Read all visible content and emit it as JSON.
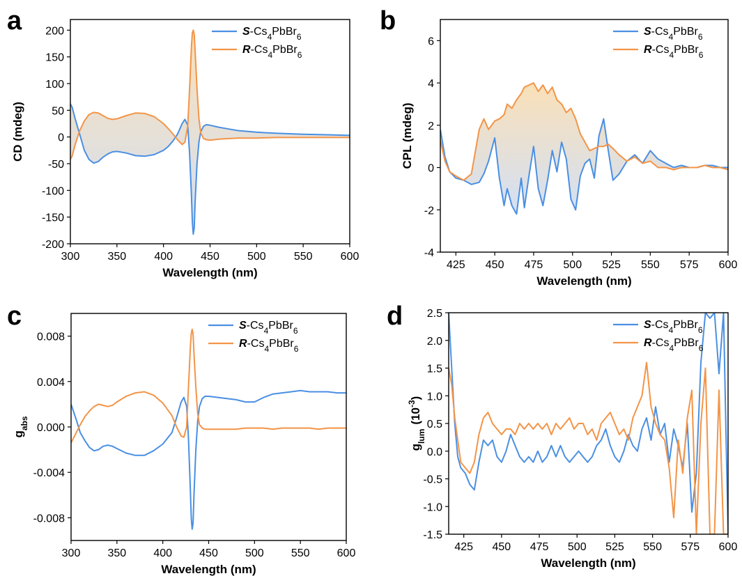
{
  "colors": {
    "s_series": "#4a8fe3",
    "r_series": "#f39447",
    "fill_r": "#f7cf8f",
    "fill_s": "#b9cff0"
  },
  "chart_data": [
    {
      "panel": "a",
      "type": "line",
      "xlabel": "Wavelength (nm)",
      "ylabel": "CD (mdeg)",
      "xlim": [
        300,
        600
      ],
      "ylim": [
        -200,
        220
      ],
      "xticks": [
        300,
        350,
        400,
        450,
        500,
        550,
        600
      ],
      "yticks": [
        -200,
        -150,
        -100,
        -50,
        0,
        50,
        100,
        150,
        200
      ],
      "fill_between": true,
      "legend": "top-right",
      "series": [
        {
          "name_prefix": "S",
          "name_formula": "-Cs4PbBr6",
          "color": "#4a8fe3",
          "x": [
            300,
            302,
            305,
            310,
            315,
            320,
            325,
            330,
            335,
            340,
            345,
            350,
            360,
            370,
            380,
            390,
            400,
            405,
            410,
            415,
            420,
            423,
            426,
            428,
            430,
            431,
            432,
            433,
            434,
            436,
            438,
            440,
            443,
            446,
            450,
            460,
            470,
            480,
            500,
            520,
            550,
            580,
            600
          ],
          "y": [
            62,
            55,
            35,
            5,
            -25,
            -42,
            -49,
            -46,
            -38,
            -32,
            -28,
            -27,
            -30,
            -35,
            -36,
            -33,
            -25,
            -18,
            -8,
            5,
            25,
            33,
            22,
            -30,
            -110,
            -160,
            -182,
            -170,
            -120,
            -50,
            -10,
            10,
            20,
            23,
            22,
            18,
            15,
            12,
            9,
            7,
            5,
            4,
            3
          ]
        },
        {
          "name_prefix": "R",
          "name_formula": "-Cs4PbBr6",
          "color": "#f39447",
          "x": [
            300,
            302,
            305,
            310,
            315,
            320,
            325,
            330,
            335,
            340,
            345,
            350,
            360,
            370,
            380,
            390,
            400,
            405,
            410,
            415,
            420,
            423,
            426,
            428,
            430,
            431,
            432,
            433,
            434,
            436,
            438,
            440,
            443,
            446,
            450,
            460,
            470,
            480,
            500,
            520,
            550,
            580,
            600
          ],
          "y": [
            -42,
            -35,
            -15,
            12,
            30,
            42,
            46,
            45,
            40,
            35,
            33,
            34,
            40,
            45,
            44,
            38,
            25,
            16,
            6,
            -5,
            -14,
            -10,
            20,
            90,
            170,
            195,
            200,
            192,
            160,
            90,
            35,
            8,
            -3,
            -5,
            -6,
            -4,
            -3,
            -2,
            -2,
            -1,
            -1,
            -1,
            -1
          ]
        }
      ]
    },
    {
      "panel": "b",
      "type": "line",
      "xlabel": "Wavelength (nm)",
      "ylabel": "CPL (mdeg)",
      "xlim": [
        415,
        600
      ],
      "ylim": [
        -4,
        7
      ],
      "xticks": [
        425,
        450,
        475,
        500,
        525,
        550,
        575,
        600
      ],
      "yticks": [
        -4,
        -2,
        0,
        2,
        4,
        6
      ],
      "fill_between": true,
      "legend": "top-right",
      "series": [
        {
          "name_prefix": "S",
          "name_formula": "-Cs4PbBr6",
          "color": "#4a8fe3",
          "x": [
            415,
            418,
            421,
            425,
            430,
            435,
            440,
            443,
            446,
            450,
            453,
            456,
            458,
            461,
            464,
            467,
            469,
            472,
            475,
            478,
            481,
            484,
            487,
            490,
            493,
            496,
            499,
            502,
            505,
            508,
            511,
            514,
            517,
            520,
            523,
            526,
            530,
            535,
            540,
            545,
            550,
            555,
            560,
            565,
            570,
            575,
            580,
            585,
            590,
            595,
            600
          ],
          "y": [
            1.8,
            0.5,
            -0.2,
            -0.5,
            -0.6,
            -0.8,
            -0.7,
            -0.3,
            0.3,
            1.4,
            -0.5,
            -1.8,
            -1.0,
            -1.8,
            -2.2,
            -0.5,
            -1.9,
            -0.4,
            1.0,
            -1.0,
            -1.8,
            -0.6,
            0.8,
            -0.2,
            1.2,
            0.4,
            -1.5,
            -2.0,
            -0.4,
            0.2,
            0.4,
            -0.5,
            1.5,
            2.3,
            0.8,
            -0.6,
            -0.3,
            0.3,
            0.6,
            0.2,
            0.8,
            0.4,
            0.2,
            0.0,
            0.1,
            0.0,
            0.0,
            0.1,
            0.1,
            0.0,
            0.0
          ]
        },
        {
          "name_prefix": "R",
          "name_formula": "-Cs4PbBr6",
          "color": "#f39447",
          "x": [
            415,
            418,
            421,
            425,
            430,
            435,
            440,
            443,
            446,
            450,
            453,
            456,
            458,
            461,
            464,
            467,
            469,
            472,
            475,
            478,
            481,
            484,
            487,
            490,
            493,
            496,
            499,
            502,
            505,
            508,
            511,
            514,
            517,
            520,
            523,
            526,
            530,
            535,
            540,
            545,
            550,
            555,
            560,
            565,
            570,
            575,
            580,
            585,
            590,
            595,
            600
          ],
          "y": [
            1.3,
            0.3,
            -0.2,
            -0.4,
            -0.6,
            -0.3,
            1.8,
            2.3,
            1.8,
            2.2,
            2.3,
            2.5,
            3.0,
            2.8,
            3.2,
            3.5,
            3.8,
            3.9,
            4.0,
            3.6,
            3.9,
            3.5,
            3.8,
            3.2,
            3.0,
            2.6,
            2.8,
            2.3,
            1.6,
            1.2,
            0.8,
            0.9,
            1.0,
            1.0,
            1.1,
            0.9,
            0.6,
            0.3,
            0.5,
            0.2,
            0.3,
            0.0,
            0.0,
            -0.1,
            0.0,
            0.0,
            0.0,
            0.1,
            0.0,
            0.0,
            -0.1
          ]
        }
      ]
    },
    {
      "panel": "c",
      "type": "line",
      "xlabel": "Wavelength (nm)",
      "ylabel_main": "g",
      "ylabel_sub": "abs",
      "xlim": [
        300,
        600
      ],
      "ylim": [
        -0.01,
        0.01
      ],
      "xticks": [
        300,
        350,
        400,
        450,
        500,
        550,
        600
      ],
      "yticks": [
        -0.008,
        -0.004,
        0.0,
        0.004,
        0.008
      ],
      "ytick_labels": [
        "-0.008",
        "-0.004",
        "0.000",
        "0.004",
        "0.008"
      ],
      "fill_between": false,
      "legend": "top-right",
      "series": [
        {
          "name_prefix": "S",
          "name_formula": "-Cs4PbBr6",
          "color": "#4a8fe3",
          "x": [
            300,
            305,
            310,
            315,
            320,
            325,
            330,
            335,
            340,
            345,
            350,
            360,
            370,
            380,
            390,
            400,
            410,
            415,
            420,
            423,
            426,
            428,
            430,
            431,
            432,
            433,
            434,
            436,
            438,
            440,
            443,
            446,
            450,
            460,
            470,
            480,
            490,
            500,
            510,
            520,
            530,
            540,
            550,
            560,
            570,
            580,
            590,
            600
          ],
          "y": [
            0.002,
            0.0008,
            -0.0005,
            -0.0012,
            -0.0018,
            -0.0021,
            -0.002,
            -0.0017,
            -0.0016,
            -0.0017,
            -0.0019,
            -0.0023,
            -0.0025,
            -0.0025,
            -0.0021,
            -0.0015,
            -0.0005,
            0.0008,
            0.0022,
            0.0026,
            0.0018,
            -0.001,
            -0.0055,
            -0.008,
            -0.009,
            -0.0085,
            -0.006,
            -0.002,
            0.0005,
            0.0018,
            0.0025,
            0.0027,
            0.0027,
            0.0026,
            0.0025,
            0.0024,
            0.0022,
            0.0022,
            0.0026,
            0.0029,
            0.003,
            0.0031,
            0.0032,
            0.0031,
            0.0031,
            0.0031,
            0.003,
            0.003
          ]
        },
        {
          "name_prefix": "R",
          "name_formula": "-Cs4PbBr6",
          "color": "#f39447",
          "x": [
            300,
            305,
            310,
            315,
            320,
            325,
            330,
            335,
            340,
            345,
            350,
            360,
            370,
            380,
            390,
            400,
            410,
            415,
            420,
            423,
            426,
            428,
            430,
            431,
            432,
            433,
            434,
            436,
            438,
            440,
            443,
            446,
            450,
            460,
            470,
            480,
            490,
            500,
            510,
            520,
            530,
            540,
            550,
            560,
            570,
            580,
            590,
            600
          ],
          "y": [
            -0.0014,
            -0.0006,
            0.0002,
            0.0009,
            0.0014,
            0.0018,
            0.002,
            0.0019,
            0.0018,
            0.0019,
            0.0022,
            0.0027,
            0.003,
            0.0031,
            0.0028,
            0.0021,
            0.001,
            0.0,
            -0.0008,
            -0.0009,
            0.0,
            0.0035,
            0.007,
            0.0082,
            0.0086,
            0.0082,
            0.0065,
            0.0035,
            0.0012,
            0.0002,
            -0.0001,
            -0.0002,
            -0.0002,
            -0.0002,
            -0.0002,
            -0.0002,
            -0.0001,
            -0.0001,
            -0.0001,
            -0.0002,
            -0.0001,
            -0.0001,
            -0.0001,
            -0.0001,
            -0.0002,
            -0.0001,
            -0.0001,
            -0.0001
          ]
        }
      ]
    },
    {
      "panel": "d",
      "type": "line",
      "xlabel": "Wavelength (nm)",
      "ylabel_main": "g",
      "ylabel_sub": "lum",
      "ylabel_suffix": "(10",
      "ylabel_exp": "-3",
      "ylabel_close": ")",
      "xlim": [
        415,
        600
      ],
      "ylim": [
        -1.5,
        2.5
      ],
      "xticks": [
        425,
        450,
        475,
        500,
        525,
        550,
        575,
        600
      ],
      "yticks": [
        -1.5,
        -1.0,
        -0.5,
        0.0,
        0.5,
        1.0,
        1.5,
        2.0,
        2.5
      ],
      "ytick_labels": [
        "-1.5",
        "-1.0",
        "-0.5",
        "0.0",
        "0.5",
        "1.0",
        "1.5",
        "2.0",
        "2.5"
      ],
      "fill_between": false,
      "legend": "top-right",
      "series": [
        {
          "name_prefix": "S",
          "name_formula": "-Cs4PbBr6",
          "color": "#4a8fe3",
          "x": [
            415,
            417,
            419,
            421,
            423,
            426,
            429,
            432,
            435,
            438,
            441,
            444,
            447,
            450,
            453,
            456,
            459,
            462,
            465,
            468,
            471,
            474,
            477,
            480,
            483,
            486,
            489,
            492,
            495,
            498,
            501,
            504,
            507,
            510,
            513,
            516,
            519,
            522,
            525,
            528,
            531,
            534,
            537,
            540,
            543,
            546,
            549,
            552,
            555,
            558,
            561,
            564,
            567,
            570,
            573,
            576,
            579,
            582,
            585,
            588,
            591,
            594,
            597,
            600
          ],
          "y": [
            2.5,
            1.5,
            0.5,
            -0.1,
            -0.3,
            -0.4,
            -0.6,
            -0.7,
            -0.2,
            0.2,
            0.1,
            0.2,
            -0.1,
            -0.2,
            0.0,
            0.3,
            0.1,
            -0.1,
            -0.2,
            -0.1,
            -0.2,
            0.0,
            -0.2,
            -0.1,
            0.1,
            -0.1,
            0.1,
            -0.1,
            -0.2,
            -0.1,
            0.0,
            -0.1,
            -0.2,
            -0.1,
            0.1,
            0.2,
            0.4,
            0.1,
            -0.1,
            -0.2,
            0.0,
            0.3,
            0.1,
            0.0,
            0.4,
            0.6,
            0.2,
            0.8,
            0.3,
            0.5,
            -0.2,
            0.4,
            0.1,
            -0.3,
            0.5,
            -1.1,
            -0.4,
            1.6,
            2.5,
            2.4,
            2.5,
            1.4,
            2.5,
            -1.5
          ]
        },
        {
          "name_prefix": "R",
          "name_formula": "-Cs4PbBr6",
          "color": "#f39447",
          "x": [
            415,
            417,
            419,
            421,
            423,
            426,
            429,
            432,
            435,
            438,
            441,
            444,
            447,
            450,
            453,
            456,
            459,
            462,
            465,
            468,
            471,
            474,
            477,
            480,
            483,
            486,
            489,
            492,
            495,
            498,
            501,
            504,
            507,
            510,
            513,
            516,
            519,
            522,
            525,
            528,
            531,
            534,
            537,
            540,
            543,
            546,
            549,
            552,
            555,
            558,
            561,
            564,
            567,
            570,
            573,
            576,
            579,
            582,
            585,
            588,
            591,
            594,
            597,
            600
          ],
          "y": [
            1.5,
            1.2,
            0.6,
            0.2,
            -0.2,
            -0.3,
            -0.4,
            -0.2,
            0.3,
            0.6,
            0.7,
            0.5,
            0.4,
            0.3,
            0.4,
            0.4,
            0.3,
            0.5,
            0.4,
            0.5,
            0.4,
            0.5,
            0.4,
            0.5,
            0.3,
            0.5,
            0.4,
            0.5,
            0.6,
            0.4,
            0.5,
            0.5,
            0.3,
            0.4,
            0.2,
            0.5,
            0.6,
            0.7,
            0.5,
            0.3,
            0.4,
            0.2,
            0.6,
            0.8,
            1.0,
            1.6,
            0.8,
            0.5,
            0.3,
            0.2,
            -0.3,
            -1.2,
            0.2,
            -0.4,
            0.6,
            1.1,
            -1.5,
            0.5,
            1.5,
            -1.5,
            -1.5,
            1.1,
            -1.5,
            -1.5
          ]
        }
      ]
    }
  ]
}
